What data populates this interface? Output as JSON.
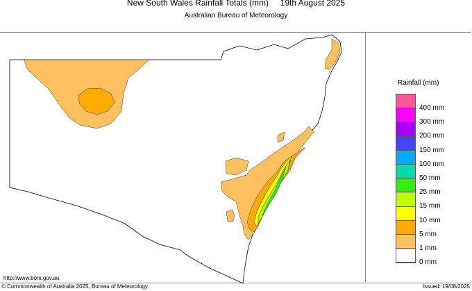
{
  "header": {
    "title": "New South Wales Rainfall Totals (mm)     19th August 2025",
    "subtitle": "Australian Bureau of Meteorology"
  },
  "legend": {
    "title": "Rainfall (mm)",
    "colors": [
      "#ff5599",
      "#ff00ff",
      "#aa00ff",
      "#4444ff",
      "#00aaff",
      "#00ddaa",
      "#33ee11",
      "#bbff00",
      "#ffff00",
      "#ffaa00",
      "#ffc060",
      "#ffffff"
    ],
    "labels": [
      "400 mm",
      "300 mm",
      "200 mm",
      "150 mm",
      "100 mm",
      "50 mm",
      "25 mm",
      "15 mm",
      "10 mm",
      "5 mm",
      "1 mm",
      "0 mm"
    ]
  },
  "footer": {
    "url": "http://www.bom.gov.au",
    "copyright": "© Commonwealth of Australia 2025, Bureau of Meteorology",
    "issued": "Issued: 19/08/2025"
  }
}
